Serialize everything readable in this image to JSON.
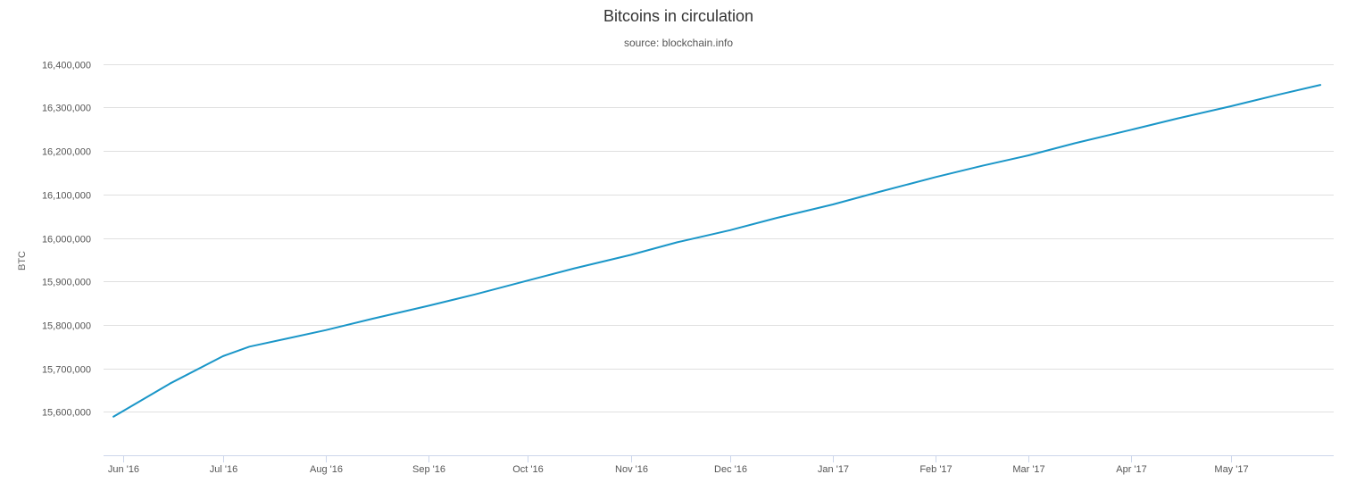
{
  "chart_data": {
    "type": "line",
    "title": "Bitcoins in circulation",
    "subtitle": "source: blockchain.info",
    "xlabel": "",
    "ylabel": "BTC",
    "ylim": [
      15500000,
      16420000
    ],
    "y_ticks": [
      15600000,
      15700000,
      15800000,
      15900000,
      16000000,
      16100000,
      16200000,
      16300000,
      16400000
    ],
    "y_tick_labels": [
      "15,600,000",
      "15,700,000",
      "15,800,000",
      "15,900,000",
      "16,000,000",
      "16,100,000",
      "16,200,000",
      "16,300,000",
      "16,400,000"
    ],
    "x_range": [
      "2016-05-26",
      "2017-06-01"
    ],
    "x_ticks": [
      "2016-06-01",
      "2016-07-01",
      "2016-08-01",
      "2016-09-01",
      "2016-10-01",
      "2016-11-01",
      "2016-12-01",
      "2017-01-01",
      "2017-02-01",
      "2017-03-01",
      "2017-04-01",
      "2017-05-01"
    ],
    "x_tick_labels": [
      "Jun '16",
      "Jul '16",
      "Aug '16",
      "Sep '16",
      "Oct '16",
      "Nov '16",
      "Dec '16",
      "Jan '17",
      "Feb '17",
      "Mar '17",
      "Apr '17",
      "May '17"
    ],
    "grid": true,
    "legend": "none",
    "line_color": "#1a96c8",
    "series": [
      {
        "x": [
          "2016-05-29",
          "2016-06-15",
          "2016-07-01",
          "2016-07-09",
          "2016-07-20",
          "2016-08-01",
          "2016-08-15",
          "2016-09-01",
          "2016-09-15",
          "2016-10-01",
          "2016-10-15",
          "2016-11-01",
          "2016-11-15",
          "2016-12-01",
          "2016-12-15",
          "2017-01-01",
          "2017-01-15",
          "2017-02-01",
          "2017-02-15",
          "2017-03-01",
          "2017-03-15",
          "2017-04-01",
          "2017-04-15",
          "2017-05-01",
          "2017-05-15",
          "2017-05-28"
        ],
        "values": [
          15589000,
          15665000,
          15728000,
          15750000,
          15768000,
          15788000,
          15814000,
          15844000,
          15870000,
          15902000,
          15930000,
          15961000,
          15990000,
          16018000,
          16046000,
          16077000,
          16106000,
          16140000,
          16166000,
          16190000,
          16218000,
          16249000,
          16275000,
          16303000,
          16329000,
          16352000
        ]
      }
    ]
  }
}
